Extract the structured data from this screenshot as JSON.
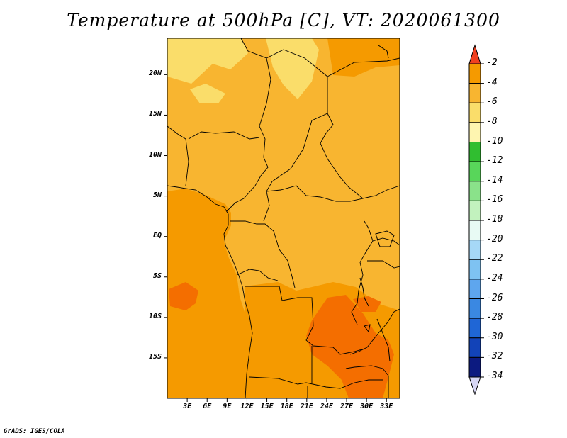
{
  "title": "Temperature at 500hPa [C], VT: 2020061300",
  "footer": "GrADS: IGES/COLA",
  "map": {
    "region": "Central Africa",
    "variable": "Temperature at 500hPa",
    "units": "C",
    "lon_range": [
      0,
      35
    ],
    "lat_range": [
      -20,
      24.5
    ]
  },
  "lon_ticks": [
    {
      "value": 3,
      "label": "3E"
    },
    {
      "value": 6,
      "label": "6E"
    },
    {
      "value": 9,
      "label": "9E"
    },
    {
      "value": 12,
      "label": "12E"
    },
    {
      "value": 15,
      "label": "15E"
    },
    {
      "value": 18,
      "label": "18E"
    },
    {
      "value": 21,
      "label": "21E"
    },
    {
      "value": 24,
      "label": "24E"
    },
    {
      "value": 27,
      "label": "27E"
    },
    {
      "value": 30,
      "label": "30E"
    },
    {
      "value": 33,
      "label": "33E"
    }
  ],
  "lat_ticks": [
    {
      "value": 20,
      "label": "20N"
    },
    {
      "value": 15,
      "label": "15N"
    },
    {
      "value": 10,
      "label": "10N"
    },
    {
      "value": 5,
      "label": "5N"
    },
    {
      "value": 0,
      "label": "EQ"
    },
    {
      "value": -5,
      "label": "5S"
    },
    {
      "value": -10,
      "label": "10S"
    },
    {
      "value": -15,
      "label": "15S"
    }
  ],
  "colorbar": {
    "labels": [
      "-2",
      "-4",
      "-6",
      "-8",
      "-10",
      "-12",
      "-14",
      "-16",
      "-18",
      "-20",
      "-22",
      "-24",
      "-26",
      "-28",
      "-30",
      "-32",
      "-34"
    ],
    "top_arrow_color": "#f04020",
    "bottom_arrow_color": "#d7d7f5",
    "colors": [
      "#f46e00",
      "#f59a00",
      "#f8b530",
      "#fadd6a",
      "#fef5b0",
      "#30be30",
      "#58d65a",
      "#8ae28a",
      "#c2f2be",
      "#e8faf4",
      "#a6d8f7",
      "#7ec2f2",
      "#5ea6ee",
      "#3a88e2",
      "#1f66d6",
      "#1243b8",
      "#0c1a80"
    ]
  },
  "palette": {
    "t_minus_2_4": "#f46e00",
    "t_minus_4_6": "#f59a00",
    "t_minus_6_8": "#f8b530",
    "t_minus_8_10": "#fadd6a",
    "border": "#000000"
  }
}
